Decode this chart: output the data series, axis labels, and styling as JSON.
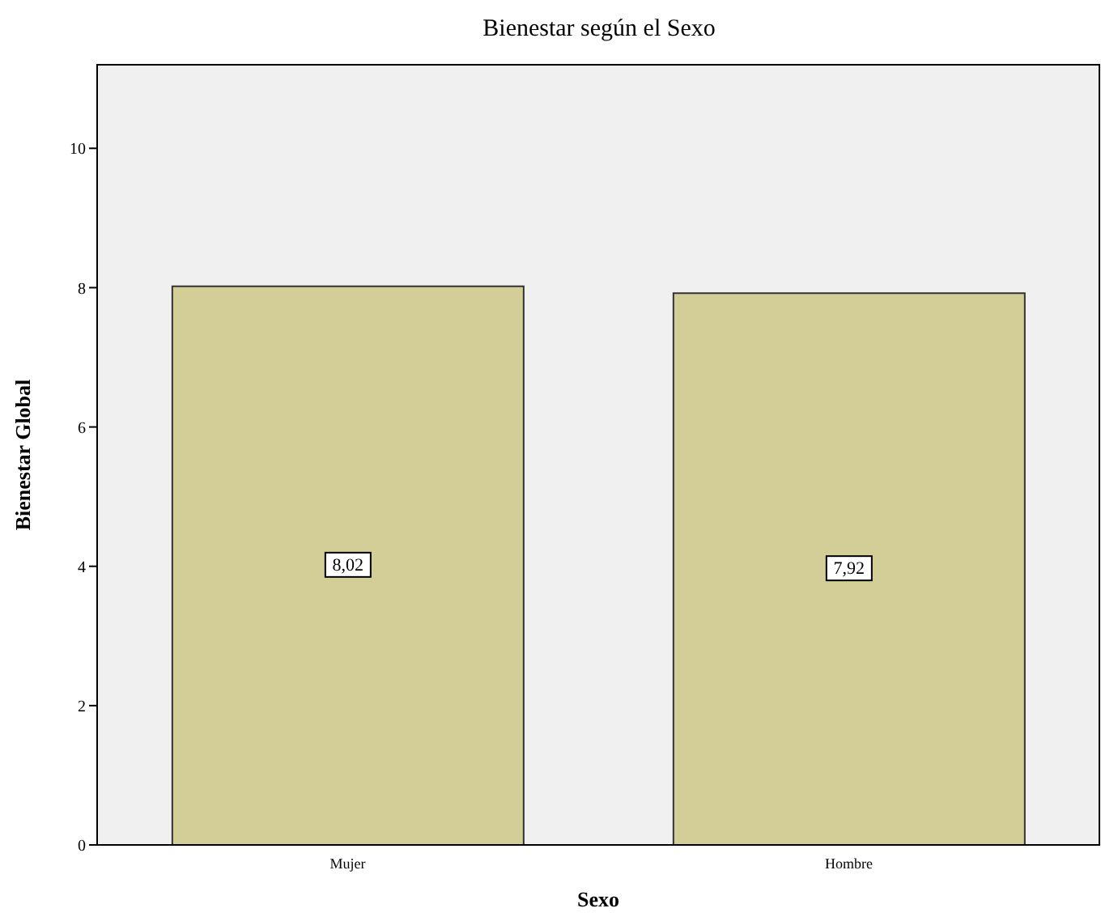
{
  "chart_data": {
    "type": "bar",
    "title": "Bienestar según el Sexo",
    "xlabel": "Sexo",
    "ylabel": "Bienestar Global",
    "categories": [
      "Mujer",
      "Hombre"
    ],
    "series": [
      {
        "color": "#d3ce97",
        "values": [
          8.02,
          7.92
        ]
      }
    ],
    "value_labels": [
      "8,02",
      "7,92"
    ],
    "ylim": [
      0,
      11.2
    ],
    "yticks": [
      0,
      2,
      4,
      6,
      8,
      10
    ],
    "grid": false
  }
}
